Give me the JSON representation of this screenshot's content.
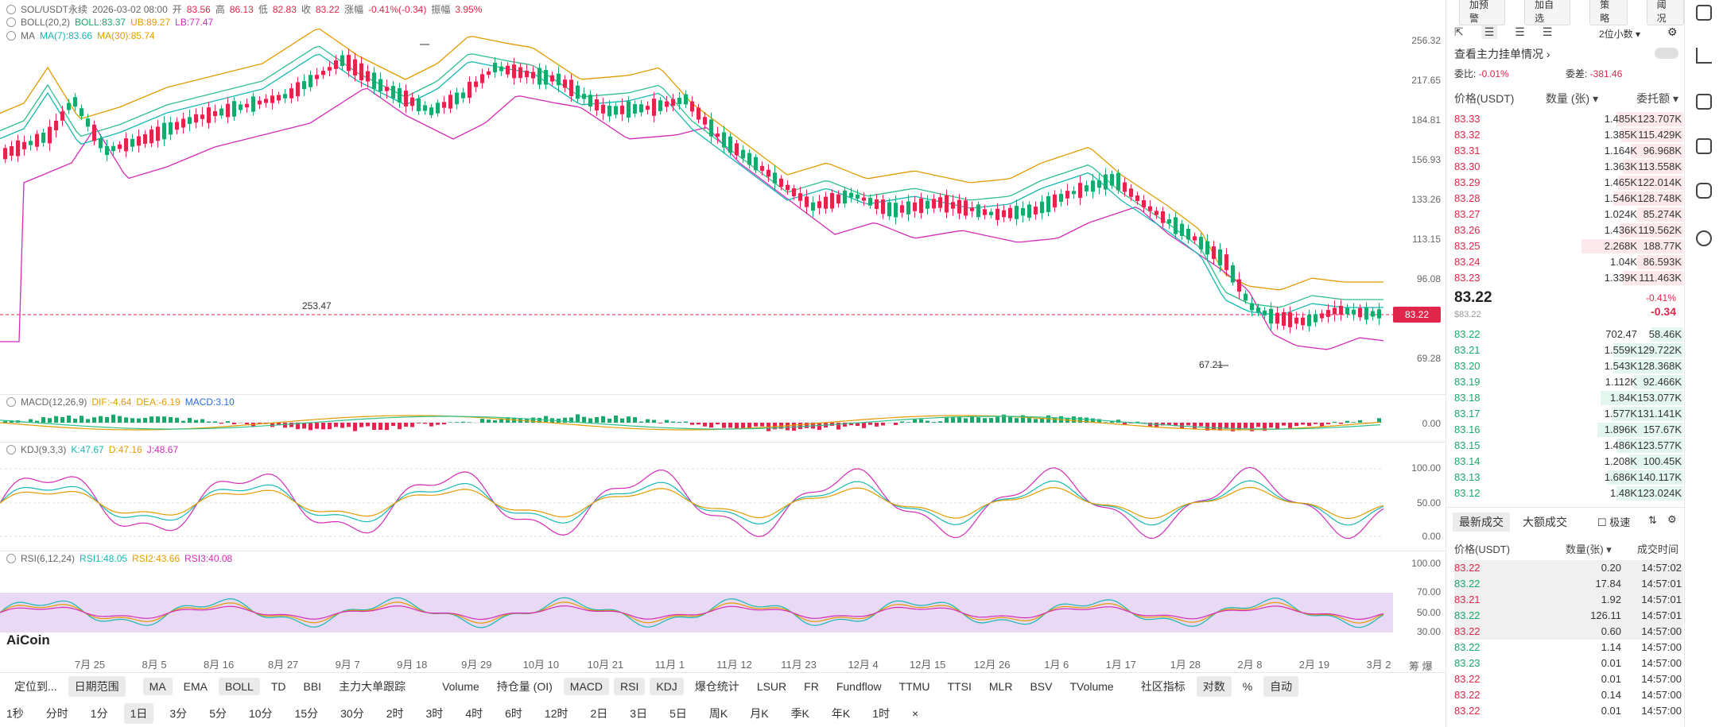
{
  "header": {
    "symbol": "SOL/USDT永续",
    "datetime": "2026-03-02 08:00",
    "open_label": "开",
    "open": "83.56",
    "high_label": "高",
    "high": "86.13",
    "low_label": "低",
    "low": "82.83",
    "close_label": "收",
    "close": "83.22",
    "change_label": "涨幅",
    "change": "-0.41%(-0.34)",
    "amp_label": "振幅",
    "amp": "3.95%"
  },
  "boll": {
    "name": "BOLL(20,2)",
    "boll": "BOLL:83.37",
    "ub": "UB:89.27",
    "lb": "LB:77.47"
  },
  "ma": {
    "name": "MA",
    "ma7": "MA(7):83.66",
    "ma30": "MA(30):85.74"
  },
  "macd": {
    "name": "MACD(12,26,9)",
    "dif": "DIF:-4.64",
    "dea": "DEA:-6.19",
    "macd": "MACD:3.10"
  },
  "kdj": {
    "name": "KDJ(9,3,3)",
    "k": "K:47.67",
    "d": "D:47.16",
    "j": "J:48.67"
  },
  "rsi": {
    "name": "RSI(6,12,24)",
    "r1": "RSI1:48.05",
    "r2": "RSI2:43.66",
    "r3": "RSI3:40.08"
  },
  "price_axis": [
    "256.32",
    "217.65",
    "184.81",
    "156.93",
    "133.26",
    "113.15",
    "96.08",
    "69.28"
  ],
  "annotations": {
    "high": "253.47",
    "low": "67.21"
  },
  "current_price_tag": "83.22",
  "macd_axis": [
    "0.00"
  ],
  "kdj_axis": [
    "100.00",
    "50.00",
    "0.00"
  ],
  "rsi_axis": [
    "100.00",
    "70.00",
    "50.00",
    "30.00"
  ],
  "x_axis": [
    "7月 25",
    "8月 5",
    "8月 16",
    "8月 27",
    "9月 7",
    "9月 18",
    "9月 29",
    "10月 10",
    "10月 21",
    "11月 1",
    "11月 12",
    "11月 23",
    "12月 4",
    "12月 15",
    "12月 26",
    "1月 6",
    "1月 17",
    "1月 28",
    "2月 8",
    "2月 19",
    "3月 2"
  ],
  "x_axis_right": {
    "a": "筹",
    "b": "爆"
  },
  "logo": "AiCoin",
  "toolbar_row1": {
    "locate": "定位到...",
    "range": "日期范围",
    "indicators": [
      "MA",
      "EMA",
      "BOLL",
      "TD",
      "BBI",
      "主力大单跟踪"
    ],
    "active_indicators": [
      "MA",
      "BOLL"
    ],
    "sub_indicators": [
      "Volume",
      "持仓量 (OI)",
      "MACD",
      "RSI",
      "KDJ",
      "爆仓统计",
      "LSUR",
      "FR",
      "Fundflow",
      "TTMU",
      "TTSI",
      "MLR",
      "BSV",
      "TVolume"
    ],
    "active_sub": [
      "MACD",
      "RSI",
      "KDJ"
    ],
    "community": "社区指标",
    "log": "对数",
    "pct": "%",
    "auto": "自动"
  },
  "toolbar_row2": {
    "intervals": [
      "1秒",
      "分时",
      "1分",
      "1日",
      "3分",
      "5分",
      "10分",
      "15分",
      "30分",
      "2时",
      "3时",
      "4时",
      "6时",
      "12时",
      "2日",
      "3日",
      "5日",
      "周K",
      "月K",
      "季K",
      "年K",
      "1时"
    ],
    "active": "1日",
    "close": "×"
  },
  "right_panel": {
    "top_buttons": [
      "加预警",
      "加自选",
      "策略",
      "阈况"
    ],
    "decimals": "2位小数",
    "title": "查看主力挂单情况",
    "ratio_label": "委比:",
    "ratio": "-0.01%",
    "diff_label": "委差:",
    "diff": "-381.46",
    "col_price": "价格(USDT)",
    "col_qty": "数量 (张)",
    "col_amt": "委托额",
    "asks": [
      {
        "p": "83.33",
        "q": "1.485K",
        "t": "123.707K",
        "w": 0.42
      },
      {
        "p": "83.32",
        "q": "1.385K",
        "t": "115.429K",
        "w": 0.39
      },
      {
        "p": "83.31",
        "q": "1.164K",
        "t": "96.968K",
        "w": 0.33
      },
      {
        "p": "83.30",
        "q": "1.363K",
        "t": "113.558K",
        "w": 0.38
      },
      {
        "p": "83.29",
        "q": "1.465K",
        "t": "122.014K",
        "w": 0.41
      },
      {
        "p": "83.28",
        "q": "1.546K",
        "t": "128.748K",
        "w": 0.44
      },
      {
        "p": "83.27",
        "q": "1.024K",
        "t": "85.274K",
        "w": 0.29
      },
      {
        "p": "83.26",
        "q": "1.436K",
        "t": "119.562K",
        "w": 0.4
      },
      {
        "p": "83.25",
        "q": "2.268K",
        "t": "188.77K",
        "w": 0.64
      },
      {
        "p": "83.24",
        "q": "1.04K",
        "t": "86.593K",
        "w": 0.29
      },
      {
        "p": "83.23",
        "q": "1.339K",
        "t": "111.463K",
        "w": 0.38
      }
    ],
    "mid_price": "83.22",
    "mid_usd": "$83.22",
    "mid_pct": "-0.41%",
    "mid_chg": "-0.34",
    "bids": [
      {
        "p": "83.22",
        "q": "702.47",
        "t": "58.46K",
        "w": 0.2
      },
      {
        "p": "83.21",
        "q": "1.559K",
        "t": "129.722K",
        "w": 0.44
      },
      {
        "p": "83.20",
        "q": "1.543K",
        "t": "128.368K",
        "w": 0.44
      },
      {
        "p": "83.19",
        "q": "1.112K",
        "t": "92.466K",
        "w": 0.31
      },
      {
        "p": "83.18",
        "q": "1.84K",
        "t": "153.077K",
        "w": 0.52
      },
      {
        "p": "83.17",
        "q": "1.577K",
        "t": "131.141K",
        "w": 0.45
      },
      {
        "p": "83.16",
        "q": "1.896K",
        "t": "157.67K",
        "w": 0.54
      },
      {
        "p": "83.15",
        "q": "1.486K",
        "t": "123.577K",
        "w": 0.42
      },
      {
        "p": "83.14",
        "q": "1.208K",
        "t": "100.45K",
        "w": 0.34
      },
      {
        "p": "83.13",
        "q": "1.686K",
        "t": "140.117K",
        "w": 0.48
      },
      {
        "p": "83.12",
        "q": "1.48K",
        "t": "123.024K",
        "w": 0.42
      }
    ],
    "trades_tab_latest": "最新成交",
    "trades_tab_big": "大额成交",
    "fast_label": "极速",
    "trade_col_price": "价格(USDT)",
    "trade_col_qty": "数量(张)",
    "trade_col_time": "成交时间",
    "trades": [
      {
        "p": "83.22",
        "q": "0.20",
        "t": "14:57:02",
        "c": "red"
      },
      {
        "p": "83.22",
        "q": "17.84",
        "t": "14:57:01",
        "c": "green"
      },
      {
        "p": "83.21",
        "q": "1.92",
        "t": "14:57:01",
        "c": "red"
      },
      {
        "p": "83.22",
        "q": "126.11",
        "t": "14:57:01",
        "c": "green"
      },
      {
        "p": "83.22",
        "q": "0.60",
        "t": "14:57:00",
        "c": "red"
      },
      {
        "p": "83.22",
        "q": "1.14",
        "t": "14:57:00",
        "c": "green"
      },
      {
        "p": "83.23",
        "q": "0.01",
        "t": "14:57:00",
        "c": "green"
      },
      {
        "p": "83.22",
        "q": "0.01",
        "t": "14:57:00",
        "c": "red"
      },
      {
        "p": "83.22",
        "q": "0.14",
        "t": "14:57:00",
        "c": "red"
      },
      {
        "p": "83.22",
        "q": "0.01",
        "t": "14:57:00",
        "c": "red"
      }
    ]
  },
  "colors": {
    "up": "#1aa86c",
    "down": "#e0264a",
    "ma7": "#16b9b4",
    "ma30": "#e39c00",
    "boll_mid": "#2fc08a",
    "boll_band": "#d42cb8"
  }
}
